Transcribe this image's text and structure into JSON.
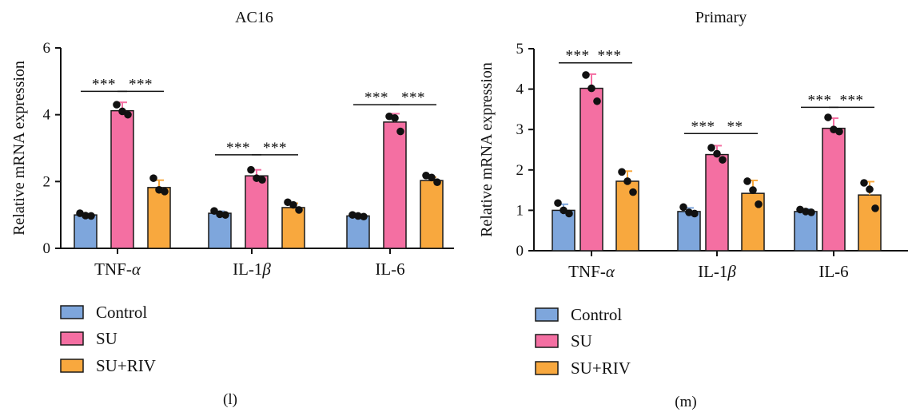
{
  "colors": {
    "Control": "#7ea6dc",
    "SU": "#f46fa2",
    "SU+RIV": "#f8a83e",
    "point": "#111111",
    "axis": "#111111"
  },
  "chart_data": [
    {
      "type": "bar",
      "panel_label": "(l)",
      "title": "AC16",
      "xlabel": "",
      "ylabel": "Relative mRNA expression",
      "ylim": [
        0,
        6
      ],
      "yticks": [
        "0",
        "2",
        "4",
        "6"
      ],
      "categories": [
        "TNF-α",
        "IL-1β",
        "IL-6"
      ],
      "category_labels": [
        {
          "main": "TNF-",
          "greek": "α"
        },
        {
          "main": "IL-1",
          "greek": "β"
        },
        {
          "main": "IL-6",
          "greek": ""
        }
      ],
      "legend": [
        "Control",
        "SU",
        "SU+RIV"
      ],
      "legend_position": "below",
      "series": [
        {
          "name": "Control",
          "values": [
            1.0,
            1.05,
            0.97
          ],
          "errors": [
            0.04,
            0.06,
            0.04
          ],
          "points": [
            [
              1.05,
              0.98,
              0.97
            ],
            [
              1.12,
              1.02,
              1.0
            ],
            [
              1.0,
              0.97,
              0.95
            ]
          ]
        },
        {
          "name": "SU",
          "values": [
            4.12,
            2.17,
            3.78
          ],
          "errors": [
            0.25,
            0.18,
            0.25
          ],
          "points": [
            [
              4.3,
              4.1,
              4.0
            ],
            [
              2.35,
              2.1,
              2.05
            ],
            [
              3.95,
              3.9,
              3.5
            ]
          ]
        },
        {
          "name": "SU+RIV",
          "values": [
            1.82,
            1.22,
            2.03
          ],
          "errors": [
            0.22,
            0.13,
            0.1
          ],
          "points": [
            [
              2.1,
              1.75,
              1.7
            ],
            [
              1.38,
              1.3,
              1.15
            ],
            [
              2.18,
              2.12,
              1.98
            ]
          ]
        }
      ],
      "significance": [
        {
          "category": 0,
          "from": 0,
          "to": 1,
          "y": 4.7,
          "label": "***"
        },
        {
          "category": 0,
          "from": 1,
          "to": 2,
          "y": 4.7,
          "label": "***"
        },
        {
          "category": 1,
          "from": 0,
          "to": 1,
          "y": 2.8,
          "label": "***"
        },
        {
          "category": 1,
          "from": 1,
          "to": 2,
          "y": 2.8,
          "label": "***"
        },
        {
          "category": 2,
          "from": 0,
          "to": 1,
          "y": 4.3,
          "label": "***"
        },
        {
          "category": 2,
          "from": 1,
          "to": 2,
          "y": 4.3,
          "label": "***"
        }
      ]
    },
    {
      "type": "bar",
      "panel_label": "(m)",
      "title": "Primary",
      "xlabel": "",
      "ylabel": "Relative mRNA expression",
      "ylim": [
        0,
        5
      ],
      "yticks": [
        "0",
        "1",
        "2",
        "3",
        "4",
        "5"
      ],
      "categories": [
        "TNF-α",
        "IL-1β",
        "IL-6"
      ],
      "category_labels": [
        {
          "main": "TNF-",
          "greek": "α"
        },
        {
          "main": "IL-1",
          "greek": "β"
        },
        {
          "main": "IL-6",
          "greek": ""
        }
      ],
      "legend": [
        "Control",
        "SU",
        "SU+RIV"
      ],
      "legend_position": "below",
      "series": [
        {
          "name": "Control",
          "values": [
            1.0,
            0.97,
            0.97
          ],
          "errors": [
            0.15,
            0.09,
            0.06
          ],
          "points": [
            [
              1.18,
              1.0,
              0.92
            ],
            [
              1.08,
              0.95,
              0.92
            ],
            [
              1.02,
              0.97,
              0.95
            ]
          ]
        },
        {
          "name": "SU",
          "values": [
            4.02,
            2.38,
            3.03
          ],
          "errors": [
            0.35,
            0.22,
            0.25
          ],
          "points": [
            [
              4.35,
              4.02,
              3.7
            ],
            [
              2.55,
              2.4,
              2.25
            ],
            [
              3.3,
              3.0,
              2.95
            ]
          ]
        },
        {
          "name": "SU+RIV",
          "values": [
            1.72,
            1.42,
            1.38
          ],
          "errors": [
            0.25,
            0.32,
            0.33
          ],
          "points": [
            [
              1.95,
              1.72,
              1.45
            ],
            [
              1.72,
              1.5,
              1.15
            ],
            [
              1.68,
              1.52,
              1.05
            ]
          ]
        }
      ],
      "significance": [
        {
          "category": 0,
          "from": 0,
          "to": 1,
          "y": 4.65,
          "label": "***"
        },
        {
          "category": 0,
          "from": 1,
          "to": 2,
          "y": 4.65,
          "label": "***"
        },
        {
          "category": 1,
          "from": 0,
          "to": 1,
          "y": 2.9,
          "label": "***"
        },
        {
          "category": 1,
          "from": 1,
          "to": 2,
          "y": 2.9,
          "label": "**"
        },
        {
          "category": 2,
          "from": 0,
          "to": 1,
          "y": 3.55,
          "label": "***"
        },
        {
          "category": 2,
          "from": 1,
          "to": 2,
          "y": 3.55,
          "label": "***"
        }
      ]
    }
  ]
}
